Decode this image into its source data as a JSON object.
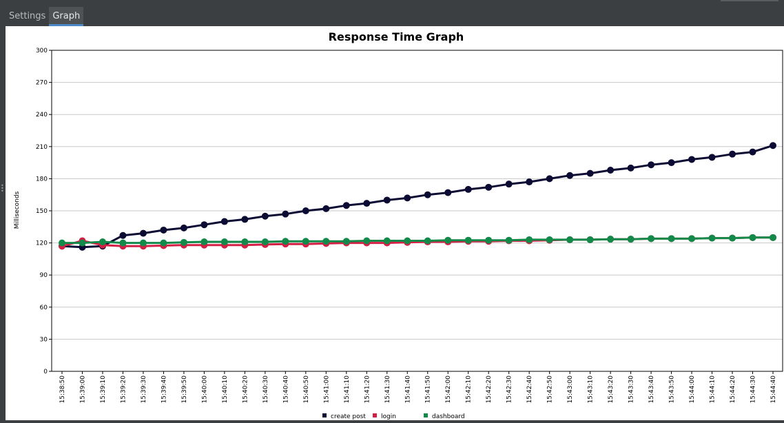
{
  "tabs": [
    {
      "label": "Settings",
      "active": false
    },
    {
      "label": "Graph",
      "active": true
    }
  ],
  "colors": {
    "accent": "#4a88c7"
  },
  "chart_data": {
    "type": "line",
    "title": "Response Time Graph",
    "xlabel": "",
    "ylabel": "Milliseconds",
    "ylim": [
      0,
      300
    ],
    "yticks": [
      0,
      30,
      60,
      90,
      120,
      150,
      180,
      210,
      240,
      270,
      300
    ],
    "grid": true,
    "legend_position": "bottom",
    "categories": [
      "15:38:50",
      "15:39:00",
      "15:39:10",
      "15:39:20",
      "15:39:30",
      "15:39:40",
      "15:39:50",
      "15:40:00",
      "15:40:10",
      "15:40:20",
      "15:40:30",
      "15:40:40",
      "15:40:50",
      "15:41:00",
      "15:41:10",
      "15:41:20",
      "15:41:30",
      "15:41:40",
      "15:41:50",
      "15:42:00",
      "15:42:10",
      "15:42:20",
      "15:42:30",
      "15:42:40",
      "15:42:50",
      "15:43:00",
      "15:43:10",
      "15:43:20",
      "15:43:30",
      "15:43:40",
      "15:43:50",
      "15:44:00",
      "15:44:10",
      "15:44:20",
      "15:44:30",
      "15:44:40"
    ],
    "series": [
      {
        "name": "create post",
        "color": "#0b0b33",
        "values": [
          117,
          116,
          117,
          127,
          129,
          132,
          134,
          137,
          140,
          142,
          145,
          147,
          150,
          152,
          155,
          157,
          160,
          162,
          165,
          167,
          170,
          172,
          175,
          177,
          180,
          183,
          185,
          188,
          190,
          193,
          195,
          198,
          200,
          203,
          205,
          211
        ]
      },
      {
        "name": "login",
        "color": "#d41f45",
        "values": [
          117,
          122,
          118,
          117,
          117,
          117.5,
          118,
          118,
          118,
          118,
          118.5,
          119,
          119,
          119.5,
          120,
          120,
          120,
          120.5,
          121,
          121,
          121.5,
          121.5,
          122,
          122,
          122.5,
          123,
          123,
          123.5,
          123.5,
          124,
          124,
          124,
          124.5,
          124.5,
          125,
          125
        ]
      },
      {
        "name": "dashboard",
        "color": "#138a4a",
        "values": [
          120,
          120,
          121,
          120,
          120,
          120,
          120.5,
          121,
          121,
          121,
          121,
          121.5,
          121.5,
          121.5,
          121.5,
          122,
          122,
          122,
          122,
          122.5,
          122.5,
          122.5,
          122.5,
          123,
          123,
          123,
          123,
          123.5,
          123.5,
          124,
          124,
          124,
          124.5,
          124.5,
          125,
          125
        ]
      }
    ]
  }
}
